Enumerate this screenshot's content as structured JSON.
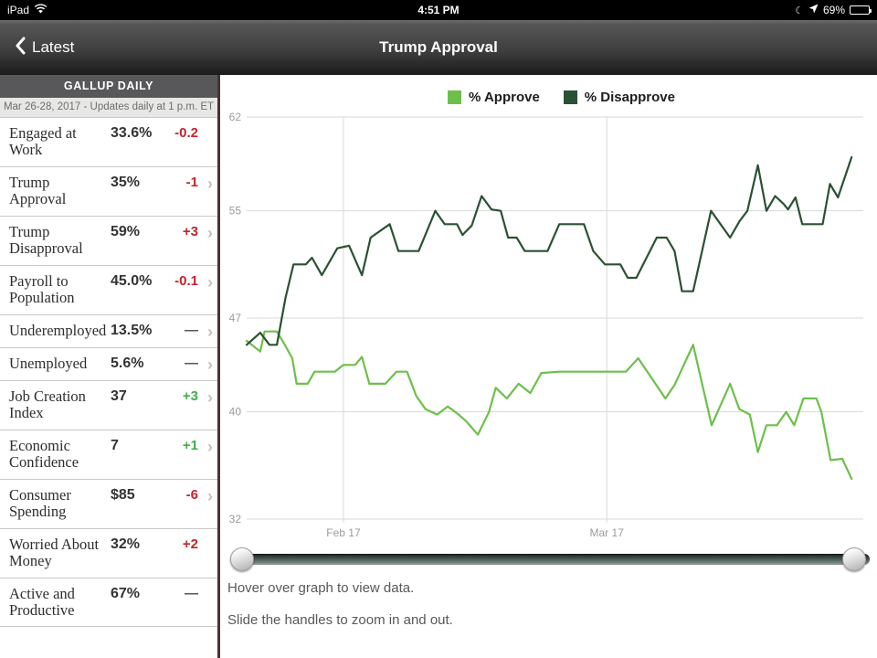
{
  "status_bar": {
    "device": "iPad",
    "time": "4:51 PM",
    "battery_percent": "69%"
  },
  "nav": {
    "back_label": "Latest",
    "title": "Trump Approval"
  },
  "sidebar": {
    "header": "GALLUP DAILY",
    "subheader": "Mar 26-28, 2017 - Updates daily at 1 p.m. ET",
    "rows": [
      {
        "label": "Engaged at Work",
        "value": "33.6%",
        "change": "-0.2",
        "dir": "red",
        "chevron": false
      },
      {
        "label": "Trump Approval",
        "value": "35%",
        "change": "-1",
        "dir": "red",
        "chevron": true
      },
      {
        "label": "Trump Disapproval",
        "value": "59%",
        "change": "+3",
        "dir": "red",
        "chevron": true
      },
      {
        "label": "Payroll to Population",
        "value": "45.0%",
        "change": "-0.1",
        "dir": "red",
        "chevron": true
      },
      {
        "label": "Underemployed",
        "value": "13.5%",
        "change": "—",
        "dir": "neutral",
        "chevron": true
      },
      {
        "label": "Unemployed",
        "value": "5.6%",
        "change": "—",
        "dir": "neutral",
        "chevron": true
      },
      {
        "label": "Job Creation Index",
        "value": "37",
        "change": "+3",
        "dir": "green",
        "chevron": true
      },
      {
        "label": "Economic Confidence",
        "value": "7",
        "change": "+1",
        "dir": "green",
        "chevron": true
      },
      {
        "label": "Consumer Spending",
        "value": "$85",
        "change": "-6",
        "dir": "red",
        "chevron": true
      },
      {
        "label": "Worried About Money",
        "value": "32%",
        "change": "+2",
        "dir": "red",
        "chevron": false
      },
      {
        "label": "Active and Productive",
        "value": "67%",
        "change": "—",
        "dir": "neutral",
        "chevron": false
      }
    ]
  },
  "chart_data": {
    "type": "line",
    "title": "Trump Approval",
    "grid": true,
    "legend_position": "top",
    "y_ticks": [
      62,
      55,
      47,
      40,
      32
    ],
    "ylim": [
      32,
      62
    ],
    "x_ticks": [
      {
        "label": "Feb 17",
        "pos": 0.157
      },
      {
        "label": "Mar 17",
        "pos": 0.584
      }
    ],
    "series": [
      {
        "name": "% Approve",
        "color": "#6cc04a",
        "points": [
          [
            0.0,
            45.3
          ],
          [
            0.022,
            44.5
          ],
          [
            0.029,
            46.0
          ],
          [
            0.049,
            46.0
          ],
          [
            0.062,
            45.0
          ],
          [
            0.074,
            44.0
          ],
          [
            0.081,
            42.1
          ],
          [
            0.099,
            42.1
          ],
          [
            0.11,
            43.0
          ],
          [
            0.143,
            43.0
          ],
          [
            0.157,
            43.5
          ],
          [
            0.176,
            43.5
          ],
          [
            0.187,
            44.1
          ],
          [
            0.199,
            42.1
          ],
          [
            0.225,
            42.1
          ],
          [
            0.243,
            43.0
          ],
          [
            0.26,
            43.0
          ],
          [
            0.275,
            41.2
          ],
          [
            0.29,
            40.2
          ],
          [
            0.309,
            39.8
          ],
          [
            0.326,
            40.4
          ],
          [
            0.341,
            39.9
          ],
          [
            0.356,
            39.3
          ],
          [
            0.375,
            38.3
          ],
          [
            0.393,
            40.0
          ],
          [
            0.404,
            41.8
          ],
          [
            0.422,
            41.0
          ],
          [
            0.441,
            42.1
          ],
          [
            0.46,
            41.4
          ],
          [
            0.478,
            42.9
          ],
          [
            0.507,
            43.0
          ],
          [
            0.551,
            43.0
          ],
          [
            0.581,
            43.0
          ],
          [
            0.615,
            43.0
          ],
          [
            0.635,
            44.0
          ],
          [
            0.657,
            42.5
          ],
          [
            0.679,
            41.0
          ],
          [
            0.694,
            42.0
          ],
          [
            0.724,
            45.0
          ],
          [
            0.754,
            39.0
          ],
          [
            0.784,
            42.1
          ],
          [
            0.799,
            40.2
          ],
          [
            0.816,
            39.8
          ],
          [
            0.829,
            37.0
          ],
          [
            0.843,
            39.0
          ],
          [
            0.86,
            39.0
          ],
          [
            0.875,
            40.0
          ],
          [
            0.888,
            39.0
          ],
          [
            0.903,
            41.0
          ],
          [
            0.924,
            41.0
          ],
          [
            0.932,
            40.0
          ],
          [
            0.947,
            36.4
          ],
          [
            0.966,
            36.5
          ],
          [
            0.981,
            35.0
          ]
        ]
      },
      {
        "name": "% Disapprove",
        "color": "#2a5134",
        "points": [
          [
            0.0,
            45.0
          ],
          [
            0.022,
            45.9
          ],
          [
            0.037,
            45.0
          ],
          [
            0.049,
            45.0
          ],
          [
            0.063,
            48.5
          ],
          [
            0.076,
            51.0
          ],
          [
            0.096,
            51.0
          ],
          [
            0.106,
            51.5
          ],
          [
            0.122,
            50.2
          ],
          [
            0.147,
            52.2
          ],
          [
            0.166,
            52.4
          ],
          [
            0.187,
            50.2
          ],
          [
            0.201,
            53.0
          ],
          [
            0.232,
            54.0
          ],
          [
            0.246,
            52.0
          ],
          [
            0.279,
            52.0
          ],
          [
            0.306,
            55.0
          ],
          [
            0.321,
            54.0
          ],
          [
            0.341,
            54.0
          ],
          [
            0.35,
            53.2
          ],
          [
            0.365,
            53.9
          ],
          [
            0.381,
            56.1
          ],
          [
            0.397,
            55.1
          ],
          [
            0.412,
            55.0
          ],
          [
            0.424,
            53.0
          ],
          [
            0.438,
            53.0
          ],
          [
            0.451,
            52.0
          ],
          [
            0.488,
            52.0
          ],
          [
            0.507,
            54.0
          ],
          [
            0.547,
            54.0
          ],
          [
            0.562,
            52.0
          ],
          [
            0.581,
            51.0
          ],
          [
            0.606,
            51.0
          ],
          [
            0.618,
            50.0
          ],
          [
            0.632,
            50.0
          ],
          [
            0.665,
            53.0
          ],
          [
            0.681,
            53.0
          ],
          [
            0.694,
            52.0
          ],
          [
            0.706,
            49.0
          ],
          [
            0.724,
            49.0
          ],
          [
            0.753,
            55.0
          ],
          [
            0.784,
            53.0
          ],
          [
            0.799,
            54.2
          ],
          [
            0.812,
            55.0
          ],
          [
            0.829,
            58.4
          ],
          [
            0.843,
            55.0
          ],
          [
            0.857,
            56.1
          ],
          [
            0.871,
            55.5
          ],
          [
            0.878,
            55.1
          ],
          [
            0.89,
            56.0
          ],
          [
            0.901,
            54.0
          ],
          [
            0.934,
            54.0
          ],
          [
            0.946,
            57.0
          ],
          [
            0.959,
            56.0
          ],
          [
            0.981,
            59.0
          ]
        ]
      }
    ]
  },
  "footer": {
    "hint1": "Hover over graph to view data.",
    "hint2": "Slide the handles to zoom in and out."
  }
}
